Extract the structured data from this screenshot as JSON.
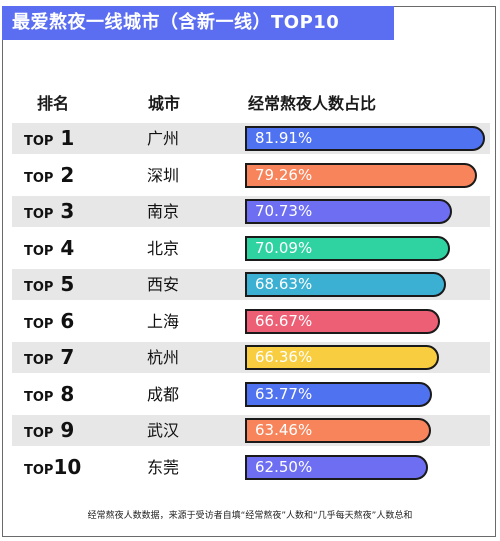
{
  "title": "最爱熬夜一线城市（含新一线）TOP10",
  "headers": {
    "rank": "排名",
    "city": "城市",
    "pct": "经常熬夜人数占比"
  },
  "footnote": "经常熬夜人数数据，来源于受访者自填“经常熬夜”人数和“几乎每天熬夜”人数总和",
  "rank_prefix": "TOP",
  "chart_data": {
    "type": "bar",
    "orientation": "horizontal",
    "title": "最爱熬夜一线城市（含新一线）TOP10",
    "categories": [
      "广州",
      "深圳",
      "南京",
      "北京",
      "西安",
      "上海",
      "杭州",
      "成都",
      "武汉",
      "东莞"
    ],
    "values": [
      81.91,
      79.26,
      70.73,
      70.09,
      68.63,
      66.67,
      66.36,
      63.77,
      63.46,
      62.5
    ],
    "labels": [
      "81.91%",
      "79.26%",
      "70.73%",
      "70.09%",
      "68.63%",
      "66.67%",
      "66.36%",
      "63.77%",
      "63.46%",
      "62.50%"
    ],
    "ranks": [
      "1",
      "2",
      "3",
      "4",
      "5",
      "6",
      "7",
      "8",
      "9",
      "10"
    ],
    "colors": [
      "#4f72f0",
      "#f7845a",
      "#6e6ef2",
      "#2fd3a2",
      "#3bb0d3",
      "#ec5f74",
      "#f8cd3f",
      "#4f72f0",
      "#f7845a",
      "#6e6ef2"
    ],
    "unit": "%"
  }
}
